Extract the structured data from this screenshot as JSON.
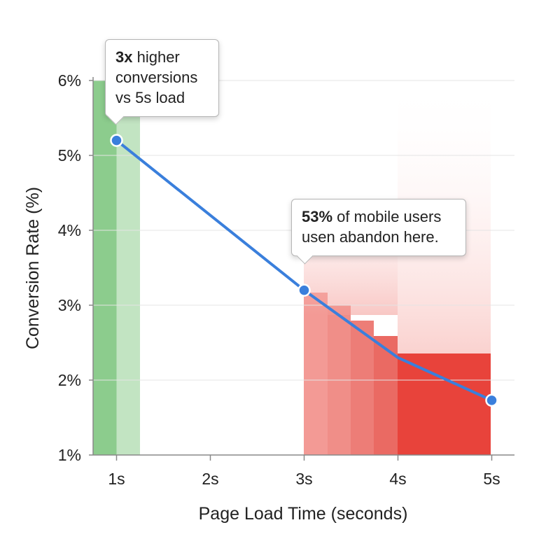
{
  "chart_data": {
    "type": "line",
    "x": [
      1,
      3,
      4,
      5
    ],
    "x_tick_labels": [
      "1s",
      "2s",
      "3s",
      "4s",
      "5s"
    ],
    "x_ticks": [
      1,
      2,
      3,
      4,
      5
    ],
    "y_tick_labels": [
      "1%",
      "2%",
      "3%",
      "4%",
      "5%",
      "6%"
    ],
    "y_ticks": [
      1,
      2,
      3,
      4,
      5,
      6
    ],
    "xlim": [
      0,
      5
    ],
    "ylim": [
      1,
      6
    ],
    "series": [
      {
        "values": [
          5.2,
          3.2,
          2.3,
          1.73
        ],
        "color": "#3a7fdc"
      }
    ],
    "marker_points": [
      {
        "x": 1,
        "y": 5.2
      },
      {
        "x": 3,
        "y": 3.2
      },
      {
        "x": 5,
        "y": 1.73
      }
    ],
    "xlabel": "Page Load Time (seconds)",
    "ylabel": "Conversion Rate (%)",
    "grid": "horizontal",
    "colors": {
      "fast_zone": "#8ccc8d",
      "fast_zone_light": "#c2e4c2",
      "slow_zone": "#e8433b",
      "line": "#3a7fdc",
      "grid": "#e4e4e4",
      "axis": "#888888"
    },
    "annotations": [
      {
        "bold": "3x",
        "rest": " higher",
        "line2": "conversions",
        "line3": "vs 5s load"
      },
      {
        "bold": "53%",
        "rest": " of mobile users",
        "line2": "usen abandon here."
      }
    ]
  }
}
